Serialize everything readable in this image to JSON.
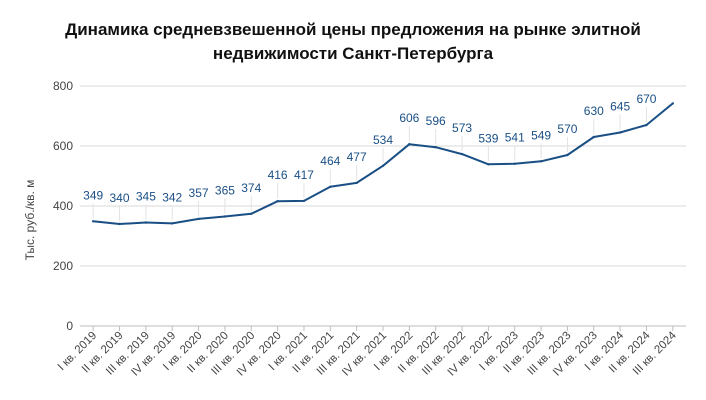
{
  "chart_data": {
    "type": "line",
    "title_lines": [
      "Динамика средневзвешенной цены предложения на рынке элитной",
      "недвижимости Санкт-Петербурга"
    ],
    "ylabel": "Тыс. руб./кв. м",
    "xlabel": "",
    "ylim": [
      0,
      800
    ],
    "yticks": [
      "0",
      "200",
      "400",
      "600",
      "800"
    ],
    "grid": true,
    "legend": "none",
    "categories": [
      "I кв. 2019",
      "II кв. 2019",
      "III кв. 2019",
      "IV кв. 2019",
      "I кв. 2020",
      "II кв. 2020",
      "III кв. 2020",
      "IV кв. 2020",
      "I кв. 2021",
      "II кв. 2021",
      "III кв. 2021",
      "IV кв. 2021",
      "I кв. 2022",
      "II кв. 2022",
      "III кв. 2022",
      "IV кв. 2022",
      "I кв. 2023",
      "II кв. 2023",
      "III кв. 2023",
      "IV кв. 2023",
      "I кв. 2024",
      "II кв. 2024",
      "III кв. 2024"
    ],
    "series": [
      {
        "values": [
          349,
          340,
          345,
          342,
          357,
          365,
          374,
          416,
          417,
          464,
          477,
          534,
          606,
          596,
          573,
          539,
          541,
          549,
          570,
          630,
          645,
          670,
          742
        ],
        "labels": [
          "349",
          "340",
          "345",
          "342",
          "357",
          "365",
          "374",
          "416",
          "417",
          "464",
          "477",
          "534",
          "606",
          "596",
          "573",
          "539",
          "541",
          "549",
          "570",
          "630",
          "645",
          "670",
          ""
        ],
        "color": "#1a4f85"
      }
    ],
    "colors": {
      "line": "#1a4f85",
      "grid": "#d9d9d9",
      "axis": "#bdbdbd",
      "text": "#444444"
    }
  }
}
